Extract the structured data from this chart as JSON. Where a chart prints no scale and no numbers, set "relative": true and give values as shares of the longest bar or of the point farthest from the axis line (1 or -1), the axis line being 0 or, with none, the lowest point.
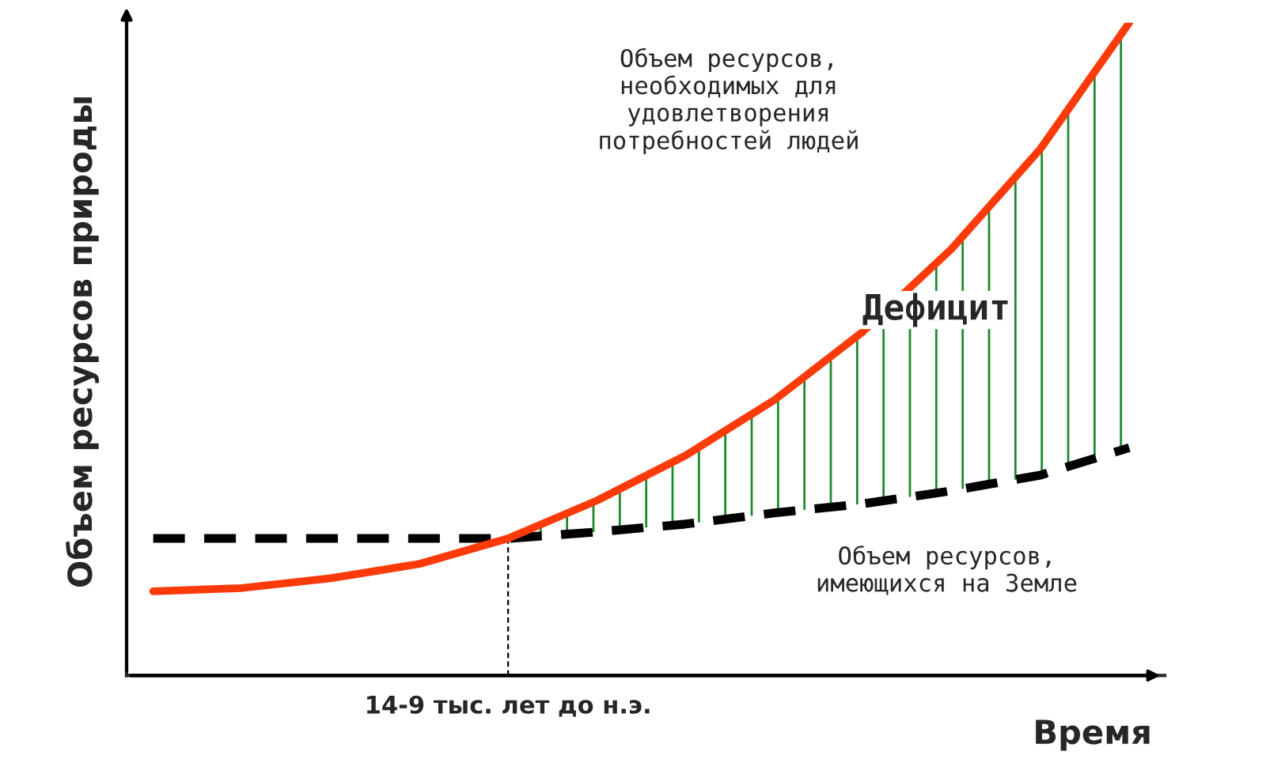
{
  "chart_data": {
    "type": "line",
    "relative": true,
    "xlabel": "Время",
    "ylabel": "Объем ресурсов природы",
    "categories": [
      null,
      null,
      null,
      null,
      null,
      null,
      null,
      null,
      null,
      null,
      null,
      null
    ],
    "series": [
      {
        "color": "#ff3a0a",
        "line_style": "solid",
        "values": [
          0.129,
          0.134,
          0.149,
          0.171,
          0.21,
          0.268,
          0.337,
          0.422,
          0.527,
          0.654,
          0.807,
          1.0
        ]
      },
      {
        "color": "#000000",
        "line_style": "dashed",
        "values": [
          0.21,
          0.21,
          0.21,
          0.21,
          0.21,
          0.22,
          0.232,
          0.249,
          0.263,
          0.283,
          0.307,
          0.349
        ]
      }
    ],
    "annotations": [
      "14-9 тыс. лет до н.э.",
      "Объем ресурсов,\nнеобходимых для\nудовлетворения\nпотребностей людей",
      "Дефицит",
      "Объем ресурсов,\nимеющихся на Земле"
    ],
    "grid": false,
    "legend": false
  }
}
